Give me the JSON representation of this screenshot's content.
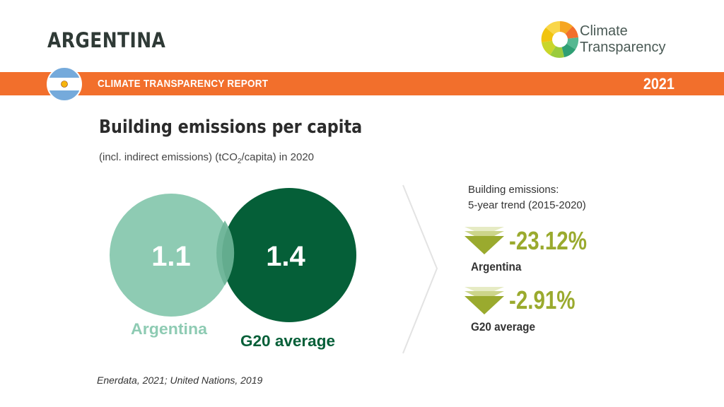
{
  "header": {
    "country": "ARGENTINA",
    "logo_text": [
      "Climate",
      "Transparency"
    ],
    "report_title": "CLIMATE TRANSPARENCY REPORT",
    "year": "2021",
    "band_color": "#f26f2c"
  },
  "chart": {
    "title": "Building emissions per capita",
    "subtitle_pre": "(incl. indirect emissions) (tCO",
    "subtitle_sub": "2",
    "subtitle_post": "/capita) in 2020",
    "circles": [
      {
        "label": "Argentina",
        "value": "1.1",
        "color": "#8ecbb3"
      },
      {
        "label": "G20 average",
        "value": "1.4",
        "color": "#055f38"
      }
    ]
  },
  "trend": {
    "heading_line1": "Building emissions:",
    "heading_line2": "5-year trend (2015-2020)",
    "items": [
      {
        "label": "Argentina",
        "value": "-23.12%",
        "direction": "down"
      },
      {
        "label": "G20 average",
        "value": "-2.91%",
        "direction": "down"
      }
    ],
    "color": "#9aaa2e"
  },
  "source": "Enerdata, 2021; United Nations, 2019"
}
